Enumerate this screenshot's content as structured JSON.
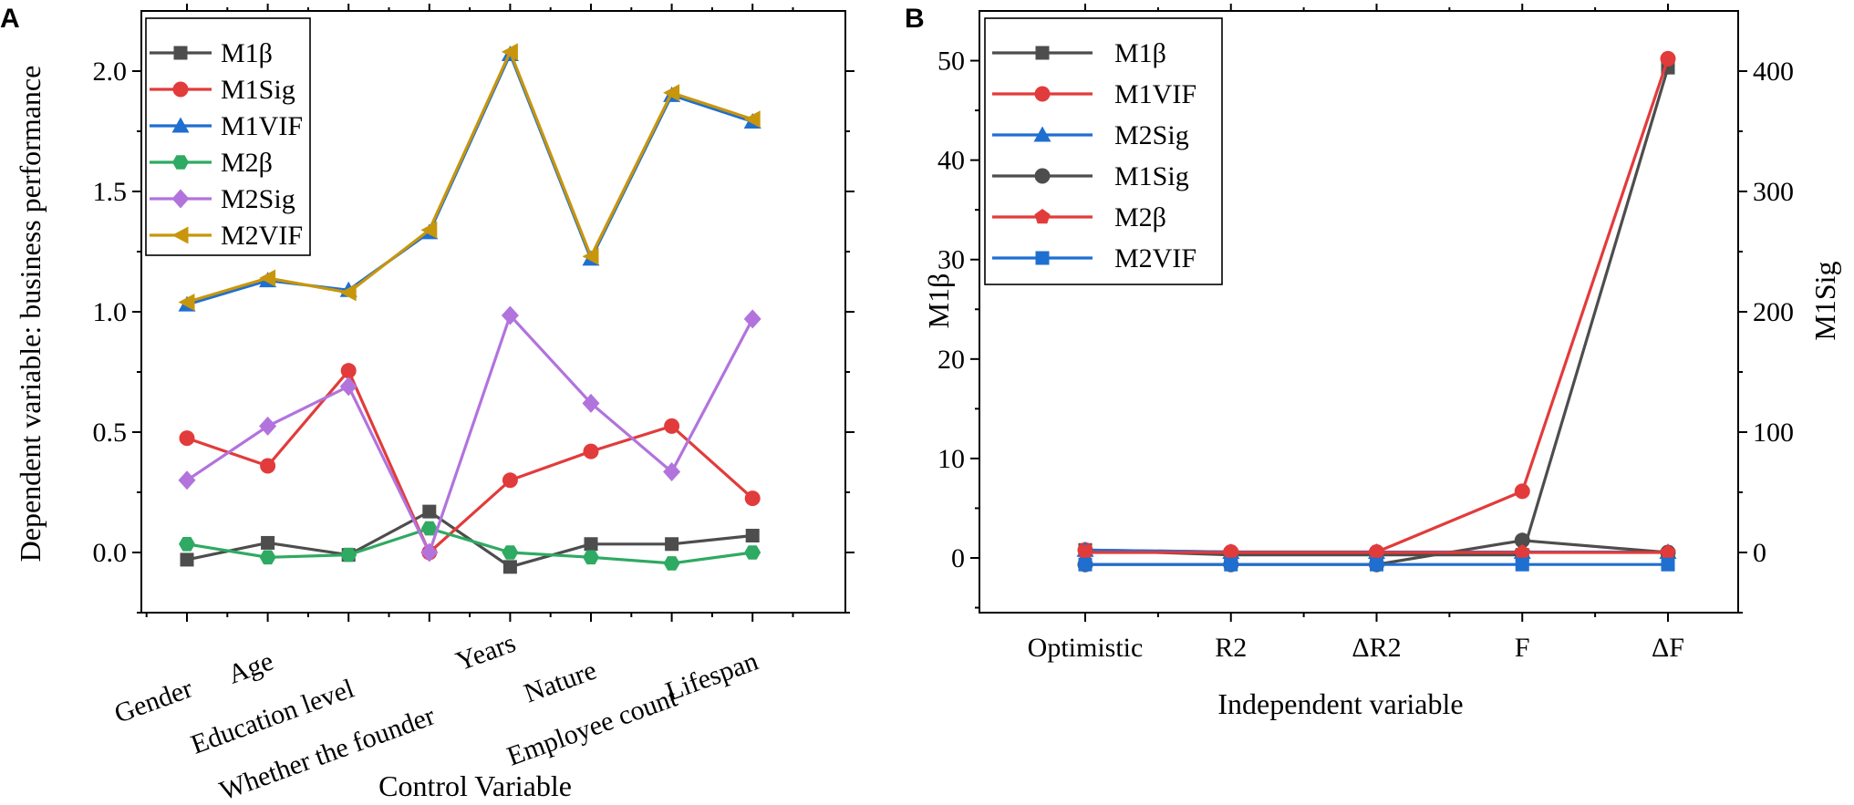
{
  "chart_data": [
    {
      "panel": "A",
      "type": "line",
      "xlabel": "Control Variable",
      "ylabel": "Dependent variable: business performance",
      "ylim": [
        -0.25,
        2.25
      ],
      "yticks": [
        "0.0",
        "0.5",
        "1.0",
        "1.5",
        "2.0"
      ],
      "ytick_values": [
        0,
        0.5,
        1.0,
        1.5,
        2.0
      ],
      "legend_position": "top-left",
      "categories": [
        "Gender",
        "Age",
        "Education level",
        "Whether the founder",
        "Years",
        "Nature",
        "Employee count",
        "Lifespan"
      ],
      "series": [
        {
          "name": "M1β",
          "color": "#4d4d4d",
          "marker": "square",
          "values": [
            -0.03,
            0.04,
            -0.01,
            0.17,
            -0.06,
            0.035,
            0.035,
            0.07
          ]
        },
        {
          "name": "M1Sig",
          "color": "#e23b3b",
          "marker": "circle",
          "values": [
            0.475,
            0.36,
            0.755,
            0.0,
            0.3,
            0.42,
            0.525,
            0.225
          ]
        },
        {
          "name": "M1VIF",
          "color": "#1f6fd1",
          "marker": "triangle-up",
          "values": [
            1.03,
            1.13,
            1.09,
            1.33,
            2.07,
            1.22,
            1.9,
            1.79
          ]
        },
        {
          "name": "M2β",
          "color": "#2eaa62",
          "marker": "hexagon",
          "values": [
            0.035,
            -0.02,
            -0.01,
            0.1,
            0.0,
            -0.02,
            -0.045,
            0.0
          ]
        },
        {
          "name": "M2Sig",
          "color": "#b273dd",
          "marker": "diamond",
          "values": [
            0.3,
            0.525,
            0.69,
            0.0,
            0.985,
            0.62,
            0.335,
            0.97
          ]
        },
        {
          "name": "M2VIF",
          "color": "#c8960c",
          "marker": "triangle-left",
          "values": [
            1.04,
            1.14,
            1.08,
            1.34,
            2.08,
            1.23,
            1.91,
            1.8
          ]
        }
      ]
    },
    {
      "panel": "B",
      "type": "line",
      "xlabel": "Independent variable",
      "ylabel": "M1β",
      "ylabel_right": "M1Sig",
      "ylim": [
        -5.5,
        55
      ],
      "ylim_right": [
        -50,
        450
      ],
      "yticks": [
        "0",
        "10",
        "20",
        "30",
        "40",
        "50"
      ],
      "ytick_values": [
        0,
        10,
        20,
        30,
        40,
        50
      ],
      "yticks_right": [
        "0",
        "100",
        "200",
        "300",
        "400"
      ],
      "ytick_values_right": [
        0,
        100,
        200,
        300,
        400
      ],
      "legend_position": "top-left",
      "categories": [
        "Optimistic",
        "R2",
        "ΔR2",
        "F",
        "ΔF"
      ],
      "series": [
        {
          "name": "M1β",
          "color": "#4d4d4d",
          "marker": "square",
          "axis": "left",
          "values": [
            0.8,
            0.3,
            0.3,
            0.3,
            49.3
          ]
        },
        {
          "name": "M1VIF",
          "color": "#e23b3b",
          "marker": "circle",
          "axis": "left",
          "values": [
            0.8,
            0.6,
            0.6,
            6.7,
            50.2
          ]
        },
        {
          "name": "M2Sig",
          "color": "#1f6fd1",
          "marker": "triangle-up",
          "axis": "left",
          "values": [
            0.8,
            0.6,
            0.6,
            0.6,
            0.6
          ]
        },
        {
          "name": "M1Sig",
          "color": "#4d4d4d",
          "marker": "circle",
          "axis": "right",
          "values": [
            -10,
            -10,
            -10,
            10,
            0
          ]
        },
        {
          "name": "M2β",
          "color": "#e23b3b",
          "marker": "pentagon",
          "axis": "right",
          "values": [
            0,
            0,
            0,
            0,
            0
          ]
        },
        {
          "name": "M2VIF",
          "color": "#1f6fd1",
          "marker": "square",
          "axis": "right",
          "values": [
            -10,
            -10,
            -10,
            -10,
            -10
          ]
        }
      ]
    }
  ]
}
